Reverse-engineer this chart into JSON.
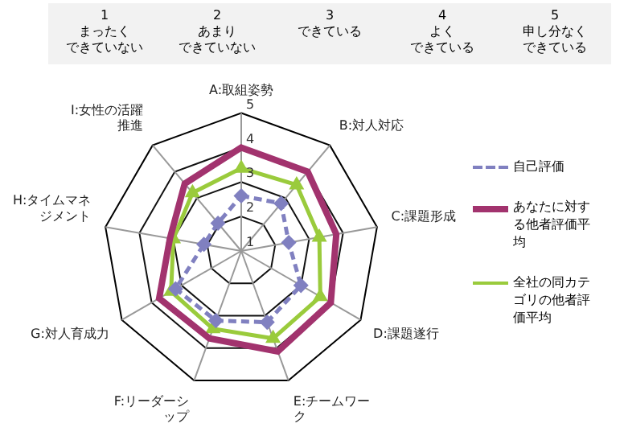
{
  "chart_data": {
    "type": "radar",
    "categories": [
      "A:取組姿勢",
      "B:対人対応",
      "C:課題形成",
      "D:課題遂行",
      "E:チームワーク",
      "F:リーダーシップ",
      "G:対人育成力",
      "H:タイムマネジメント",
      "I:女性の活躍推進"
    ],
    "series": [
      {
        "name": "自己評価",
        "color": "#8080c0",
        "line_style": "dashed",
        "marker": "diamond",
        "values": [
          2.6,
          2.8,
          2.4,
          3.0,
          3.2,
          3.15,
          3.2,
          2.1,
          2.05
        ]
      },
      {
        "name": "あなたに対する他者評価平均",
        "color": "#a2336e",
        "line_style": "solid",
        "marker": "none",
        "values": [
          4.0,
          4.0,
          3.8,
          4.0,
          4.1,
          3.7,
          3.75,
          3.1,
          3.55
        ]
      },
      {
        "name": "全社の同カテゴリの他者評価平均",
        "color": "#9acb3c",
        "line_style": "solid",
        "marker": "triangle",
        "values": [
          3.4,
          3.5,
          3.3,
          3.65,
          3.7,
          3.4,
          3.35,
          3.0,
          3.2
        ]
      }
    ],
    "ylim": [
      1,
      5
    ],
    "yticks": [
      1,
      2,
      3,
      4,
      5
    ],
    "grid": true,
    "legend": "right",
    "annotations": [
      "1",
      "まったく",
      "できていない",
      "2",
      "あまり",
      "できていない",
      "3",
      "できている",
      "4",
      "よく",
      "できている",
      "5",
      "申し分なく",
      "できている"
    ]
  }
}
